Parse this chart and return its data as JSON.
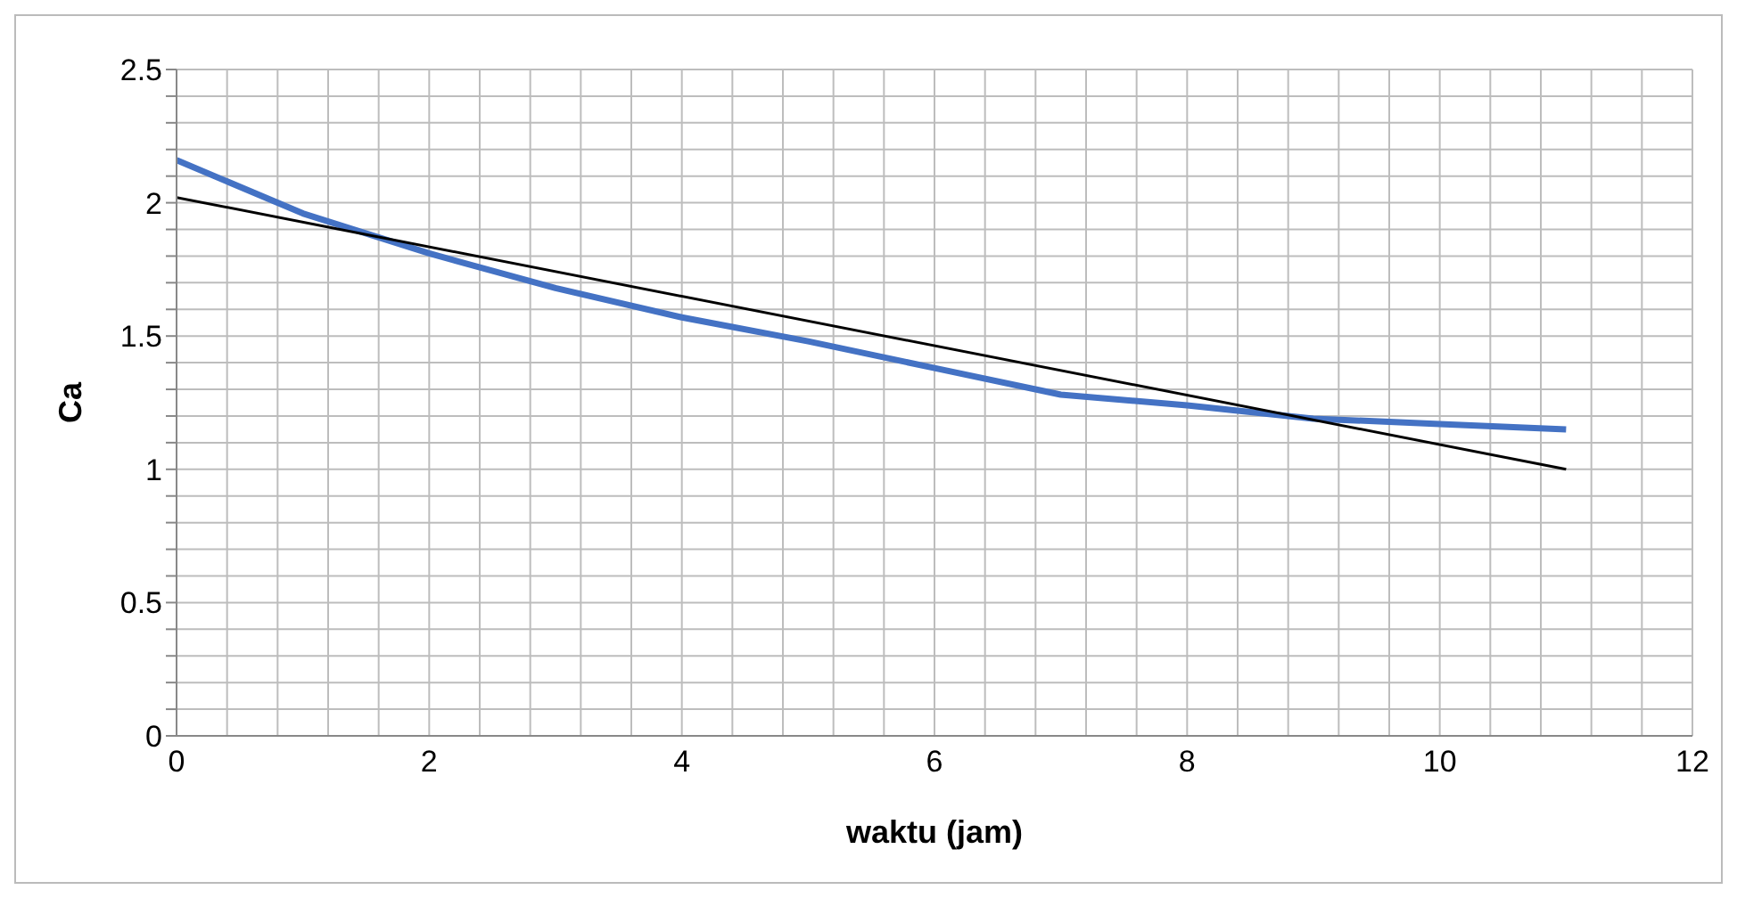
{
  "chart_data": {
    "type": "line",
    "xlabel": "waktu (jam)",
    "ylabel": "Ca",
    "xlim": [
      0,
      12
    ],
    "ylim": [
      0,
      2.5
    ],
    "xticks": [
      0,
      {
        "value": 0.4,
        "label": null
      },
      {
        "value": 0.8,
        "label": null
      },
      {
        "value": 1.2,
        "label": null
      },
      {
        "value": 1.6,
        "label": null
      },
      2,
      {
        "value": 2.4,
        "label": null
      },
      {
        "value": 2.8,
        "label": null
      },
      {
        "value": 3.2,
        "label": null
      },
      {
        "value": 3.6,
        "label": null
      },
      4,
      {
        "value": 4.4,
        "label": null
      },
      {
        "value": 4.8,
        "label": null
      },
      {
        "value": 5.2,
        "label": null
      },
      {
        "value": 5.6,
        "label": null
      },
      6,
      {
        "value": 6.4,
        "label": null
      },
      {
        "value": 6.8,
        "label": null
      },
      {
        "value": 7.2,
        "label": null
      },
      {
        "value": 7.6,
        "label": null
      },
      8,
      {
        "value": 8.4,
        "label": null
      },
      {
        "value": 8.8,
        "label": null
      },
      {
        "value": 9.2,
        "label": null
      },
      {
        "value": 9.6,
        "label": null
      },
      10,
      {
        "value": 10.4,
        "label": null
      },
      {
        "value": 10.8,
        "label": null
      },
      {
        "value": 11.2,
        "label": null
      },
      {
        "value": 11.6,
        "label": null
      },
      12
    ],
    "yticks": [
      0,
      {
        "value": 0.1,
        "label": null
      },
      {
        "value": 0.2,
        "label": null
      },
      {
        "value": 0.3,
        "label": null
      },
      {
        "value": 0.4,
        "label": null
      },
      0.5,
      {
        "value": 0.6,
        "label": null
      },
      {
        "value": 0.7,
        "label": null
      },
      {
        "value": 0.8,
        "label": null
      },
      {
        "value": 0.9,
        "label": null
      },
      1,
      {
        "value": 1.1,
        "label": null
      },
      {
        "value": 1.2,
        "label": null
      },
      {
        "value": 1.3,
        "label": null
      },
      {
        "value": 1.4,
        "label": null
      },
      1.5,
      {
        "value": 1.6,
        "label": null
      },
      {
        "value": 1.7,
        "label": null
      },
      {
        "value": 1.8,
        "label": null
      },
      {
        "value": 1.9,
        "label": null
      },
      2,
      {
        "value": 2.1,
        "label": null
      },
      {
        "value": 2.2,
        "label": null
      },
      {
        "value": 2.3,
        "label": null
      },
      {
        "value": 2.4,
        "label": null
      },
      2.5
    ],
    "grid": true,
    "marker": "none",
    "series": [
      {
        "color": "#4472c4",
        "x": [
          0,
          1,
          2,
          3,
          4,
          5,
          6,
          7,
          8,
          9,
          10,
          11
        ],
        "values": [
          2.16,
          1.96,
          1.81,
          1.68,
          1.57,
          1.48,
          1.38,
          1.28,
          1.24,
          1.19,
          1.17,
          1.15
        ]
      },
      {
        "color": "#000000",
        "x": [
          0,
          11
        ],
        "values": [
          2.02,
          1.0
        ]
      }
    ]
  }
}
